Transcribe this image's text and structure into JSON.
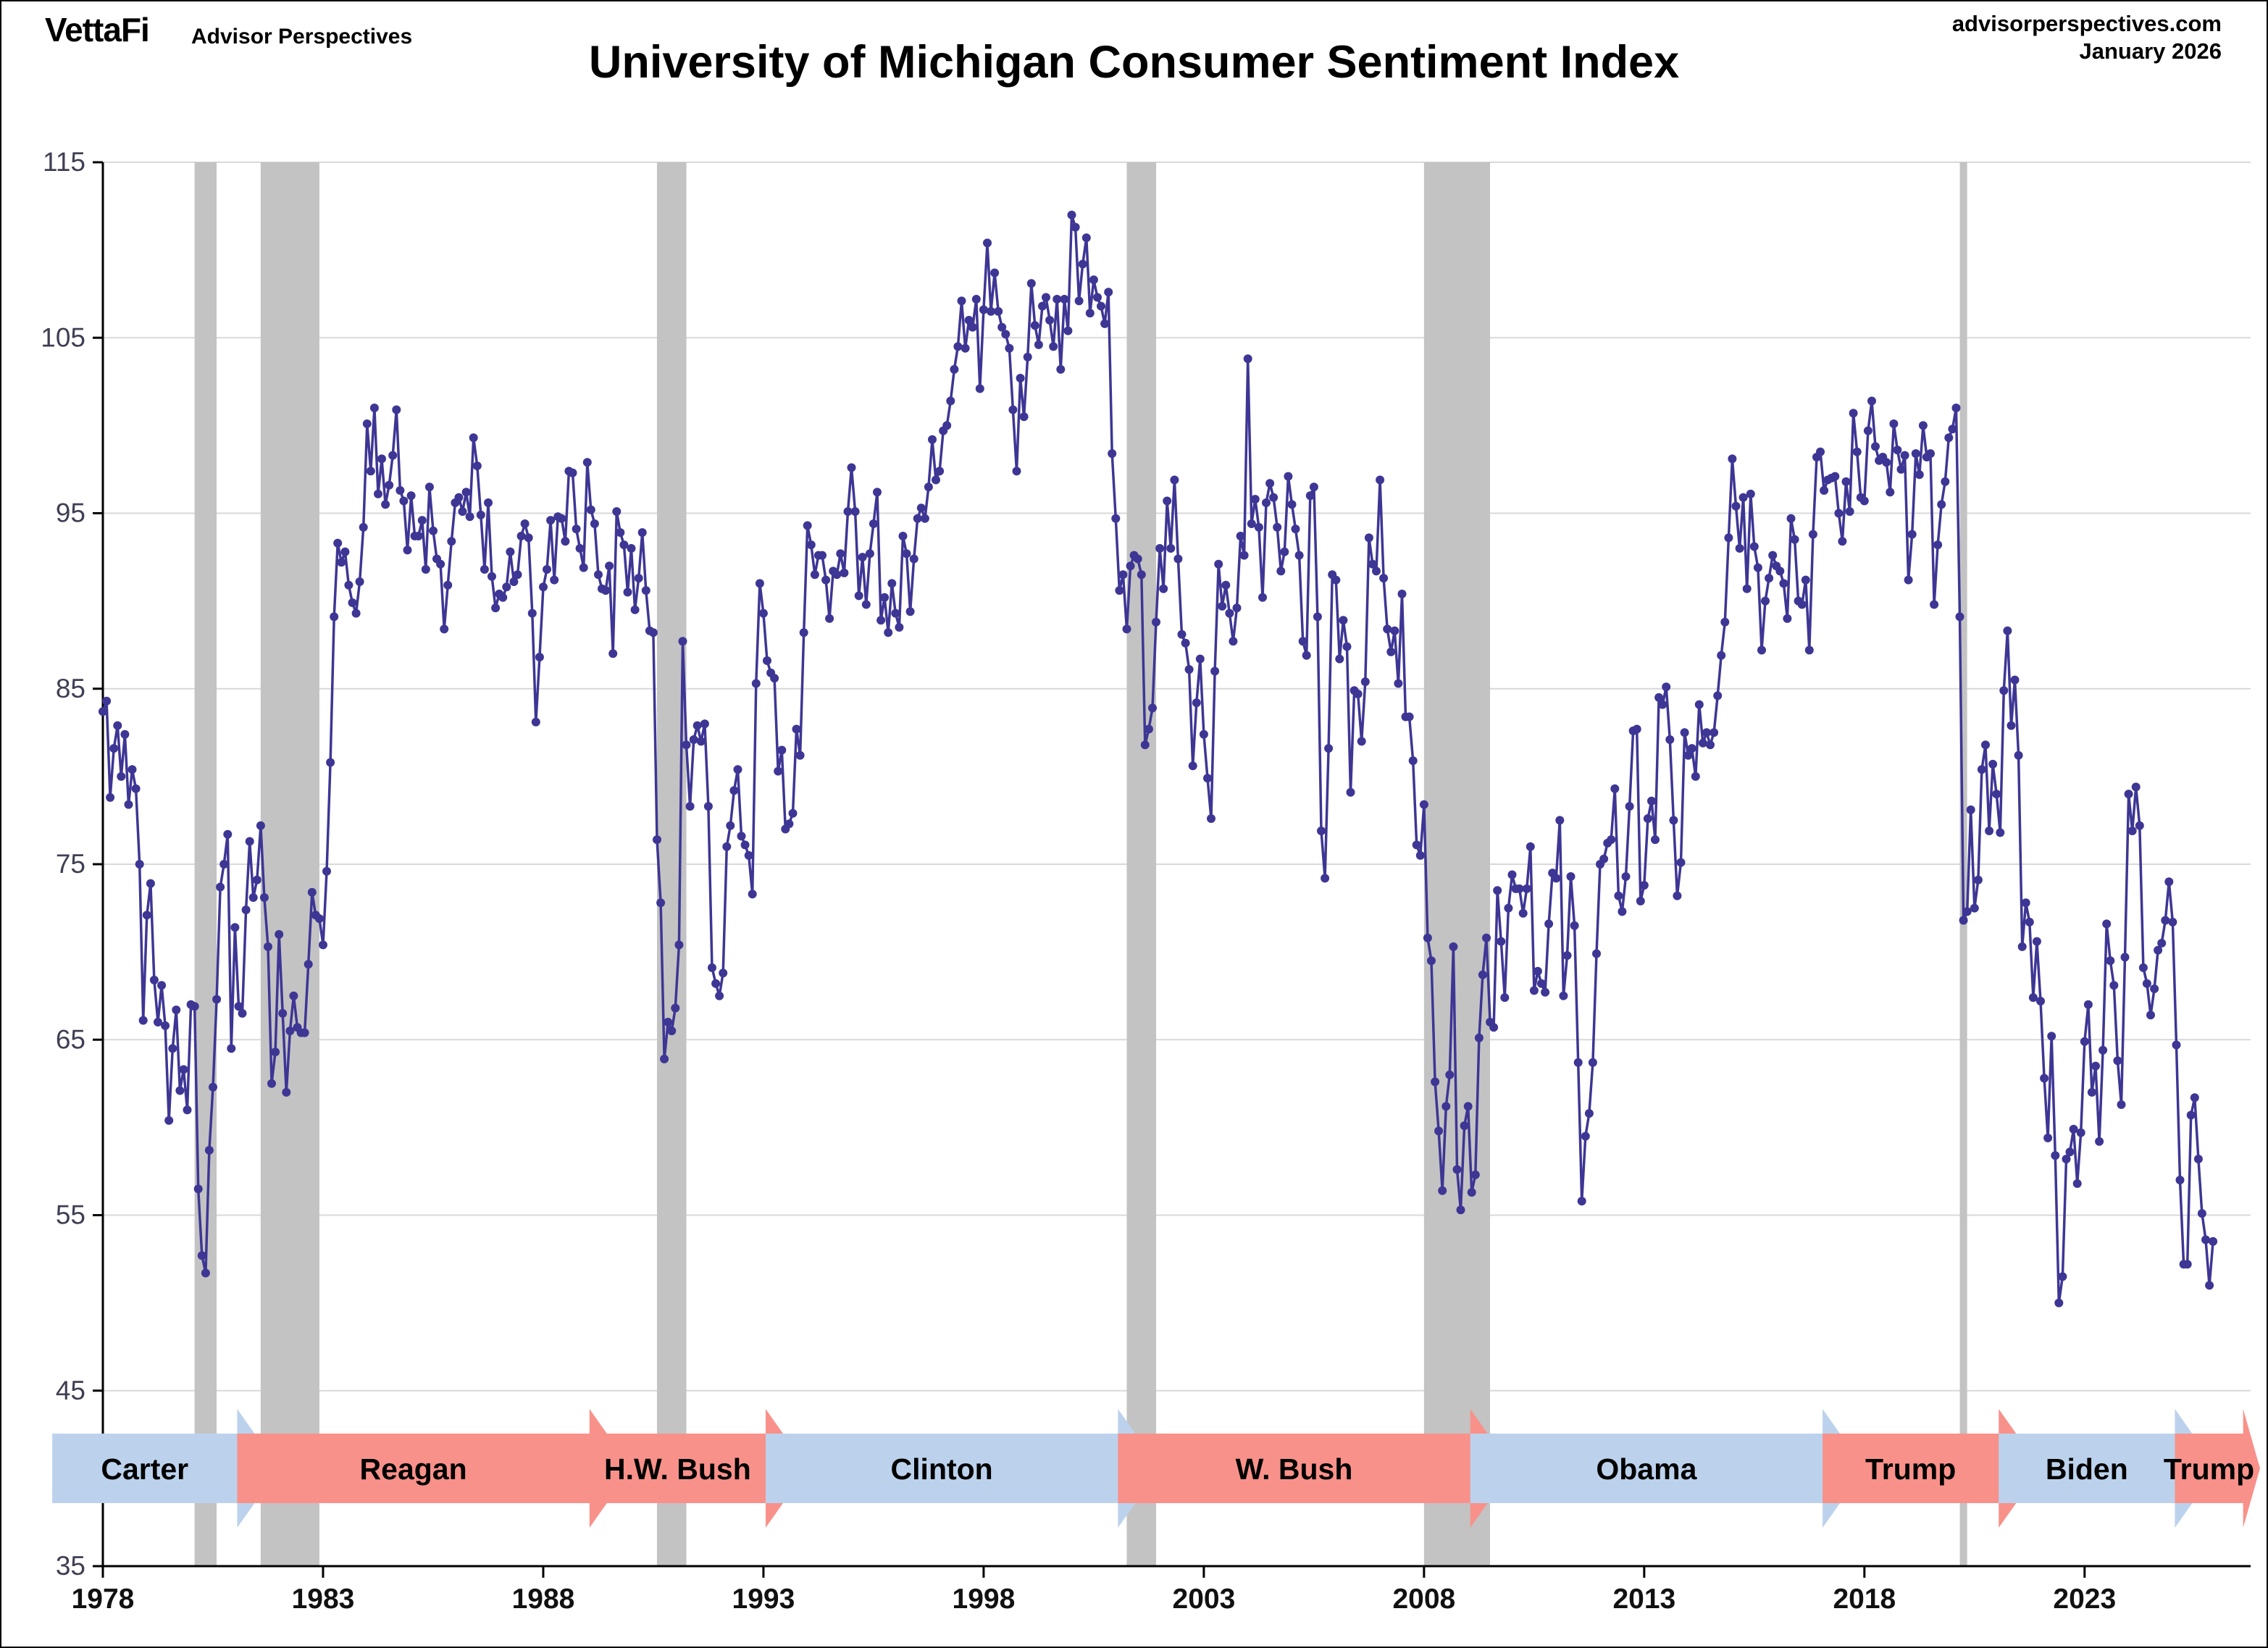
{
  "header": {
    "brand": "VettaFi",
    "brand_sub": "Advisor Perspectives",
    "site": "advisorperspectives.com",
    "date": "January 2026"
  },
  "colors": {
    "line": "#3e3694",
    "recession": "#c3c3c3",
    "gridline": "#d9d9d9",
    "axis": "#000000",
    "democrat_arrow": "#bcd2ec",
    "republican_arrow": "#f8918a",
    "y_label": "#3f3f54",
    "x_label": "#111111"
  },
  "chart_data": {
    "type": "line",
    "title": "University of Michigan Consumer Sentiment Index",
    "xlabel": "",
    "ylabel": "",
    "ylim": [
      35,
      115
    ],
    "yticks": [
      35,
      45,
      55,
      65,
      75,
      85,
      95,
      105,
      115
    ],
    "xticks": [
      1978,
      1983,
      1988,
      1993,
      1998,
      2003,
      2008,
      2013,
      2018,
      2023
    ],
    "x_start": 1978.0,
    "x_end": 2026.77,
    "grid": true,
    "legend_position": "none",
    "series": [
      {
        "name": "Consumer Sentiment Index (monthly)",
        "start_year": 1978,
        "start_month": 1,
        "values_by_year": [
          [
            83.7,
            84.3,
            78.8,
            81.6,
            82.9,
            80.0,
            82.4,
            78.4,
            80.4,
            79.3,
            75.0,
            66.1
          ],
          [
            72.1,
            73.9,
            68.4,
            66.0,
            68.1,
            65.8,
            60.4,
            64.5,
            66.7,
            62.1,
            63.3,
            61.0
          ],
          [
            67.0,
            66.9,
            56.5,
            52.7,
            51.7,
            58.7,
            62.3,
            67.3,
            73.7,
            75.0,
            76.7,
            64.5
          ],
          [
            71.4,
            66.9,
            66.5,
            72.4,
            76.3,
            73.1,
            74.1,
            77.2,
            73.1,
            70.3,
            62.5,
            64.3
          ],
          [
            71.0,
            66.5,
            62.0,
            65.5,
            67.5,
            65.7,
            65.4,
            65.4,
            69.3,
            73.4,
            72.1,
            71.9
          ],
          [
            70.4,
            74.6,
            80.8,
            89.1,
            93.3,
            92.2,
            92.8,
            90.9,
            89.9,
            89.3,
            91.1,
            94.2
          ],
          [
            100.1,
            97.4,
            101.0,
            96.1,
            98.1,
            95.5,
            96.6,
            98.3,
            100.9,
            96.3,
            95.7,
            92.9
          ],
          [
            96.0,
            93.7,
            93.7,
            94.6,
            91.8,
            96.5,
            94.0,
            92.4,
            92.1,
            88.4,
            90.9,
            93.4
          ],
          [
            95.6,
            95.9,
            95.1,
            96.2,
            94.8,
            99.3,
            97.7,
            94.9,
            91.8,
            95.6,
            91.4,
            89.6
          ],
          [
            90.4,
            90.2,
            90.8,
            92.8,
            91.1,
            91.5,
            93.7,
            94.4,
            93.6,
            89.3,
            83.1,
            86.8
          ],
          [
            90.8,
            91.8,
            94.6,
            91.2,
            94.8,
            94.7,
            93.4,
            97.4,
            97.3,
            94.1,
            93.0,
            91.9
          ],
          [
            97.9,
            95.2,
            94.4,
            91.5,
            90.7,
            90.6,
            92.0,
            87.0,
            95.1,
            93.9,
            93.2,
            90.5
          ],
          [
            93.0,
            89.5,
            91.3,
            93.9,
            90.6,
            88.3,
            88.2,
            76.4,
            72.8,
            63.9,
            66.0,
            65.5
          ],
          [
            66.8,
            70.4,
            87.7,
            81.8,
            78.3,
            82.1,
            82.9,
            82.0,
            83.0,
            78.3,
            69.1,
            68.2
          ],
          [
            67.5,
            68.8,
            76.0,
            77.2,
            79.2,
            80.4,
            76.6,
            76.1,
            75.5,
            73.3,
            85.3,
            91.0
          ],
          [
            89.3,
            86.6,
            85.9,
            85.6,
            80.3,
            81.5,
            77.0,
            77.3,
            77.9,
            82.7,
            81.2,
            88.2
          ],
          [
            94.3,
            93.2,
            91.5,
            92.6,
            92.6,
            91.2,
            89.0,
            91.7,
            91.5,
            92.7,
            91.6,
            95.1
          ],
          [
            97.6,
            95.1,
            90.3,
            92.5,
            89.8,
            92.7,
            94.4,
            96.2,
            88.9,
            90.2,
            88.2,
            91.0
          ],
          [
            89.3,
            88.5,
            93.7,
            92.7,
            89.4,
            92.4,
            94.7,
            95.3,
            94.7,
            96.5,
            99.2,
            96.9
          ],
          [
            97.4,
            99.7,
            100.0,
            101.4,
            103.2,
            104.5,
            107.1,
            104.4,
            106.0,
            105.6,
            107.2,
            102.1
          ],
          [
            106.6,
            110.4,
            106.5,
            108.7,
            106.5,
            105.6,
            105.2,
            104.4,
            100.9,
            97.4,
            102.7,
            100.5
          ],
          [
            103.9,
            108.1,
            105.7,
            104.6,
            106.8,
            107.3,
            106.0,
            104.5,
            107.2,
            103.2,
            107.2,
            105.4
          ],
          [
            112.0,
            111.3,
            107.1,
            109.2,
            110.7,
            106.4,
            108.3,
            107.3,
            106.8,
            105.8,
            107.6,
            98.4
          ],
          [
            94.7,
            90.6,
            91.5,
            88.4,
            92.0,
            92.6,
            92.4,
            91.5,
            81.8,
            82.7,
            83.9,
            88.8
          ],
          [
            93.0,
            90.7,
            95.7,
            93.0,
            96.9,
            92.4,
            88.1,
            87.6,
            86.1,
            80.6,
            84.2,
            86.7
          ],
          [
            82.4,
            79.9,
            77.6,
            86.0,
            92.1,
            89.7,
            90.9,
            89.3,
            87.7,
            89.6,
            93.7,
            92.6
          ],
          [
            103.8,
            94.4,
            95.8,
            94.2,
            90.2,
            95.6,
            96.7,
            95.9,
            94.2,
            91.7,
            92.8,
            97.1
          ],
          [
            95.5,
            94.1,
            92.6,
            87.7,
            86.9,
            96.0,
            96.5,
            89.1,
            76.9,
            74.2,
            81.6,
            91.5
          ],
          [
            91.2,
            86.7,
            88.9,
            87.4,
            79.1,
            84.9,
            84.7,
            82.0,
            85.4,
            93.6,
            92.1,
            91.7
          ],
          [
            96.9,
            91.3,
            88.4,
            87.1,
            88.3,
            85.3,
            90.4,
            83.4,
            83.4,
            80.9,
            76.1,
            75.5
          ],
          [
            78.4,
            70.8,
            69.5,
            62.6,
            59.8,
            56.4,
            61.2,
            63.0,
            70.3,
            57.6,
            55.3,
            60.1
          ],
          [
            61.2,
            56.3,
            57.3,
            65.1,
            68.7,
            70.8,
            66.0,
            65.7,
            73.5,
            70.6,
            67.4,
            72.5
          ],
          [
            74.4,
            73.6,
            73.6,
            72.2,
            73.6,
            76.0,
            67.8,
            68.9,
            68.2,
            67.7,
            71.6,
            74.5
          ],
          [
            74.2,
            77.5,
            67.5,
            69.8,
            74.3,
            71.5,
            63.7,
            55.8,
            59.5,
            60.8,
            63.7,
            69.9
          ],
          [
            75.0,
            75.3,
            76.2,
            76.4,
            79.3,
            73.2,
            72.3,
            74.3,
            78.3,
            82.6,
            82.7,
            72.9
          ],
          [
            73.8,
            77.6,
            78.6,
            76.4,
            84.5,
            84.1,
            85.1,
            82.1,
            77.5,
            73.2,
            75.1,
            82.5
          ],
          [
            81.2,
            81.6,
            80.0,
            84.1,
            81.9,
            82.5,
            81.8,
            82.5,
            84.6,
            86.9,
            88.8,
            93.6
          ],
          [
            98.1,
            95.4,
            93.0,
            95.9,
            90.7,
            96.1,
            93.1,
            91.9,
            87.2,
            90.0,
            91.3,
            92.6
          ],
          [
            92.0,
            91.7,
            91.0,
            89.0,
            94.7,
            93.5,
            90.0,
            89.8,
            91.2,
            87.2,
            93.8,
            98.2
          ],
          [
            98.5,
            96.3,
            96.9,
            97.0,
            97.1,
            95.0,
            93.4,
            96.8,
            95.1,
            100.7,
            98.5,
            95.9
          ],
          [
            95.7,
            99.7,
            101.4,
            98.8,
            98.0,
            98.2,
            97.9,
            96.2,
            100.1,
            98.6,
            97.5,
            98.3
          ],
          [
            91.2,
            93.8,
            98.4,
            97.2,
            100.0,
            98.2,
            98.4,
            89.8,
            93.2,
            95.5,
            96.8,
            99.3
          ],
          [
            99.8,
            101.0,
            89.1,
            71.8,
            72.3,
            78.1,
            72.5,
            74.1,
            80.4,
            81.8,
            76.9,
            80.7
          ],
          [
            79.0,
            76.8,
            84.9,
            88.3,
            82.9,
            85.5,
            81.2,
            70.3,
            72.8,
            71.7,
            67.4,
            70.6
          ],
          [
            67.2,
            62.8,
            59.4,
            65.2,
            58.4,
            50.0,
            51.5,
            58.2,
            58.6,
            59.9,
            56.8,
            59.7
          ],
          [
            64.9,
            67.0,
            62.0,
            63.5,
            59.2,
            64.4,
            71.6,
            69.5,
            68.1,
            63.8,
            61.3,
            69.7
          ],
          [
            79.0,
            76.9,
            79.4,
            77.2,
            69.1,
            68.2,
            66.4,
            67.9,
            70.1,
            70.5,
            71.8,
            74.0
          ],
          [
            71.7,
            64.7,
            57.0,
            52.2,
            52.2,
            60.7,
            61.7,
            58.2,
            55.1,
            53.6,
            51.0,
            53.5
          ]
        ]
      }
    ],
    "recessions": [
      {
        "start": 1980.083,
        "end": 1980.583
      },
      {
        "start": 1981.583,
        "end": 1982.917
      },
      {
        "start": 1990.583,
        "end": 1991.25
      },
      {
        "start": 2001.25,
        "end": 2001.917
      },
      {
        "start": 2008.0,
        "end": 2009.5
      },
      {
        "start": 2020.167,
        "end": 2020.333
      }
    ],
    "presidents": [
      {
        "name": "Carter",
        "party": "D",
        "start": 1976.85,
        "end": 1981.05
      },
      {
        "name": "Reagan",
        "party": "R",
        "start": 1981.05,
        "end": 1989.05
      },
      {
        "name": "H.W. Bush",
        "party": "R",
        "start": 1989.05,
        "end": 1993.05
      },
      {
        "name": "Clinton",
        "party": "D",
        "start": 1993.05,
        "end": 2001.05
      },
      {
        "name": "W. Bush",
        "party": "R",
        "start": 2001.05,
        "end": 2009.05
      },
      {
        "name": "Obama",
        "party": "D",
        "start": 2009.05,
        "end": 2017.05
      },
      {
        "name": "Trump",
        "party": "R",
        "start": 2017.05,
        "end": 2021.05
      },
      {
        "name": "Biden",
        "party": "D",
        "start": 2021.05,
        "end": 2025.05
      },
      {
        "name": "Trump",
        "party": "R",
        "start": 2025.05,
        "end": 2026.6
      }
    ]
  }
}
